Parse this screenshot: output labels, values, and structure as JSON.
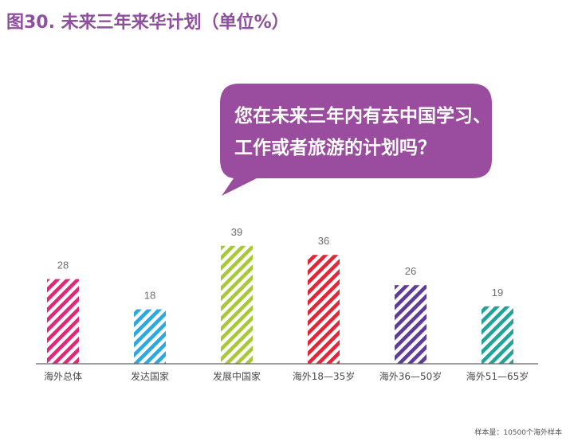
{
  "title": "图30. 未来三年来华计划（单位%）",
  "callout": {
    "lines": [
      "您在未来三年内有去中国学习、",
      "工作或者旅游的计划吗？"
    ],
    "color": "#9a4c9e"
  },
  "footnote": "样本量：10500个海外样本",
  "chart_data": {
    "type": "bar",
    "title": "图30. 未来三年来华计划（单位%）",
    "categories": [
      "海外总体",
      "发达国家",
      "发展中国家",
      "海外18—35岁",
      "海外36—50岁",
      "海外51—65岁"
    ],
    "values": [
      28,
      18,
      39,
      36,
      26,
      19
    ],
    "colors": [
      "#e0287a",
      "#2aa8e0",
      "#a8c937",
      "#e22637",
      "#5e3a9a",
      "#1fa39a"
    ],
    "bar_style": "diagonal-stripes",
    "grid": false,
    "ylim": [
      0,
      40
    ]
  }
}
